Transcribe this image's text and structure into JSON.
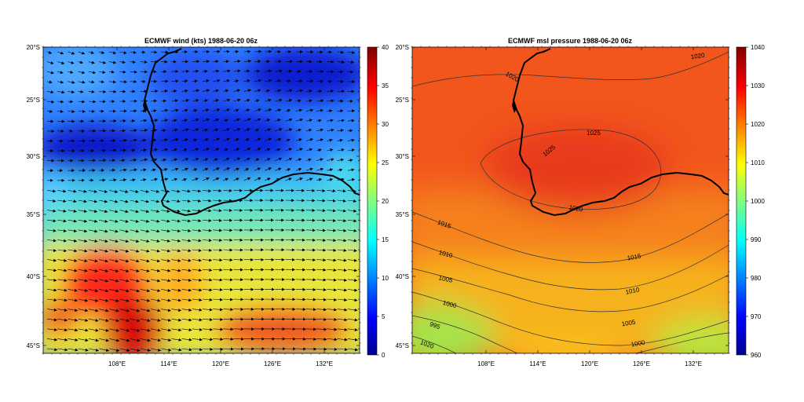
{
  "panels": [
    {
      "id": "wind",
      "title": "ECMWF wind (kts)  1988-06-20 06z",
      "lat_labels": [
        "20°S",
        "25°S",
        "30°S",
        "35°S",
        "40°S",
        "45°S"
      ],
      "lon_labels": [
        "108°E",
        "114°E",
        "120°E",
        "126°E",
        "132°E"
      ],
      "colorbar": {
        "min": 0,
        "max": 40,
        "ticks": [
          "0",
          "5",
          "10",
          "15",
          "20",
          "25",
          "30",
          "35",
          "40"
        ]
      },
      "field": "wind speed (kts)"
    },
    {
      "id": "pressure",
      "title": "ECMWF msl pressure  1988-06-20 06z",
      "lat_labels": [
        "20°S",
        "25°S",
        "30°S",
        "35°S",
        "40°S",
        "45°S"
      ],
      "lon_labels": [
        "108°E",
        "114°E",
        "120°E",
        "126°E",
        "132°E"
      ],
      "colorbar": {
        "min": 960,
        "max": 1040,
        "ticks": [
          "960",
          "970",
          "980",
          "990",
          "1000",
          "1010",
          "1020",
          "1030",
          "1040"
        ]
      },
      "field": "mean sea level pressure",
      "contour_labels": [
        "1020",
        "1020",
        "1025",
        "1025",
        "1020",
        "1015",
        "1010",
        "1005",
        "1000",
        "995",
        "1020",
        "1015",
        "1010",
        "1005",
        "1000"
      ]
    }
  ],
  "colors": {
    "high": "#d7191c",
    "low": "#1a1aff",
    "coast": "#000000"
  }
}
